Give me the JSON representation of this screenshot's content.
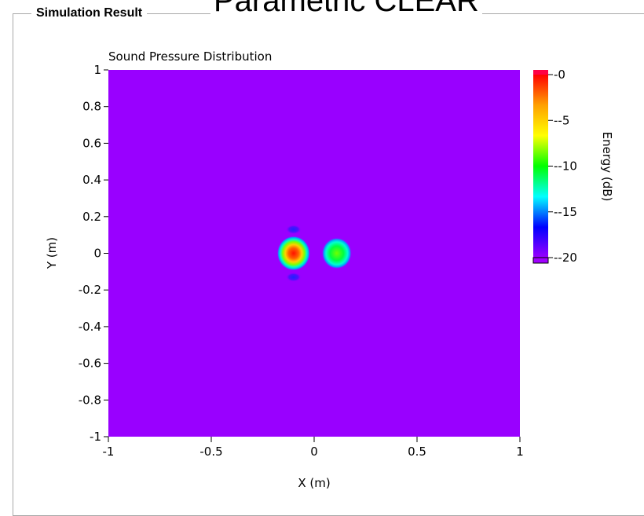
{
  "window": {
    "group_title": "Simulation Result",
    "header_title": "Parametric CLEAR"
  },
  "chart_data": {
    "type": "heatmap",
    "title": "Sound Pressure Distribution",
    "xlabel": "X (m)",
    "ylabel": "Y (m)",
    "xlim": [
      -1,
      1
    ],
    "ylim": [
      -1,
      1
    ],
    "xticks": [
      -1,
      -0.5,
      0,
      0.5,
      1
    ],
    "xtick_labels": [
      "-1",
      "-0.5",
      "0",
      "0.5",
      "1"
    ],
    "yticks": [
      1,
      0.8,
      0.6,
      0.4,
      0.2,
      0,
      -0.2,
      -0.4,
      -0.6,
      -0.8,
      -1
    ],
    "ytick_labels": [
      "1",
      "0.8",
      "0.6",
      "0.4",
      "0.2",
      "0",
      "-0.2",
      "-0.4",
      "-0.6",
      "-0.8",
      "-1"
    ],
    "background_value": -20,
    "grid": false,
    "colorbar": {
      "label": "Energy (dB)",
      "range": [
        -20,
        0
      ],
      "ticks": [
        0,
        -5,
        -10,
        -15,
        -20
      ],
      "tick_labels": [
        "0",
        "-5",
        "-10",
        "-15",
        "-20"
      ],
      "colors": [
        "#ff0000",
        "#ffa000",
        "#ffff00",
        "#00ff00",
        "#00ffff",
        "#0000ff",
        "#9900ff"
      ],
      "over_color": "#ff0044",
      "under_color": "#a000ff"
    },
    "features": [
      {
        "name": "main-lobe",
        "x": -0.1,
        "y": 0,
        "peak": 0
      },
      {
        "name": "secondary-lobe",
        "x": 0.11,
        "y": 0,
        "peak": -9
      },
      {
        "name": "upper-side-lobe",
        "x": -0.1,
        "y": 0.13,
        "peak": -16
      },
      {
        "name": "lower-side-lobe",
        "x": -0.1,
        "y": -0.13,
        "peak": -16
      }
    ]
  }
}
